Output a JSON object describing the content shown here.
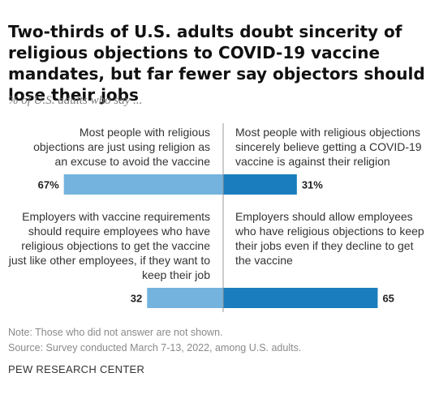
{
  "title": "Two-thirds of U.S. adults doubt sincerity of religious objections to COVID-19 vaccine mandates, but far fewer say objectors should lose their jobs",
  "subtitle": "% of U.S. adults who say ...",
  "colors": {
    "left_bar": "#74b3de",
    "right_bar": "#1a7dbd",
    "divider": "#999999"
  },
  "chart_data": {
    "type": "bar",
    "orientation": "diverging-horizontal",
    "title": "Two-thirds of U.S. adults doubt sincerity of religious objections to COVID-19 vaccine mandates, but far fewer say objectors should lose their jobs",
    "subtitle": "% of U.S. adults who say ...",
    "rows": [
      {
        "left": {
          "text": "Most people with religious objections are just using religion as an excuse to avoid the vaccine",
          "value": 67,
          "label": "67%"
        },
        "right": {
          "text": "Most people with religious objections sincerely believe getting a COVID-19 vaccine is against their religion",
          "value": 31,
          "label": "31%"
        }
      },
      {
        "left": {
          "text": "Employers with vaccine requirements should require employees who have religious objections to get the vaccine just like other employees, if they want to keep their job",
          "value": 32,
          "label": "32"
        },
        "right": {
          "text": "Employers should allow employees who have religious objections to keep their jobs even if they decline to get the vaccine",
          "value": 65,
          "label": "65"
        }
      }
    ],
    "xlim": [
      0,
      100
    ]
  },
  "note": "Note: Those who did not answer are not shown.",
  "source": "Source: Survey conducted March 7-13, 2022, among U.S. adults.",
  "org": "PEW RESEARCH CENTER"
}
